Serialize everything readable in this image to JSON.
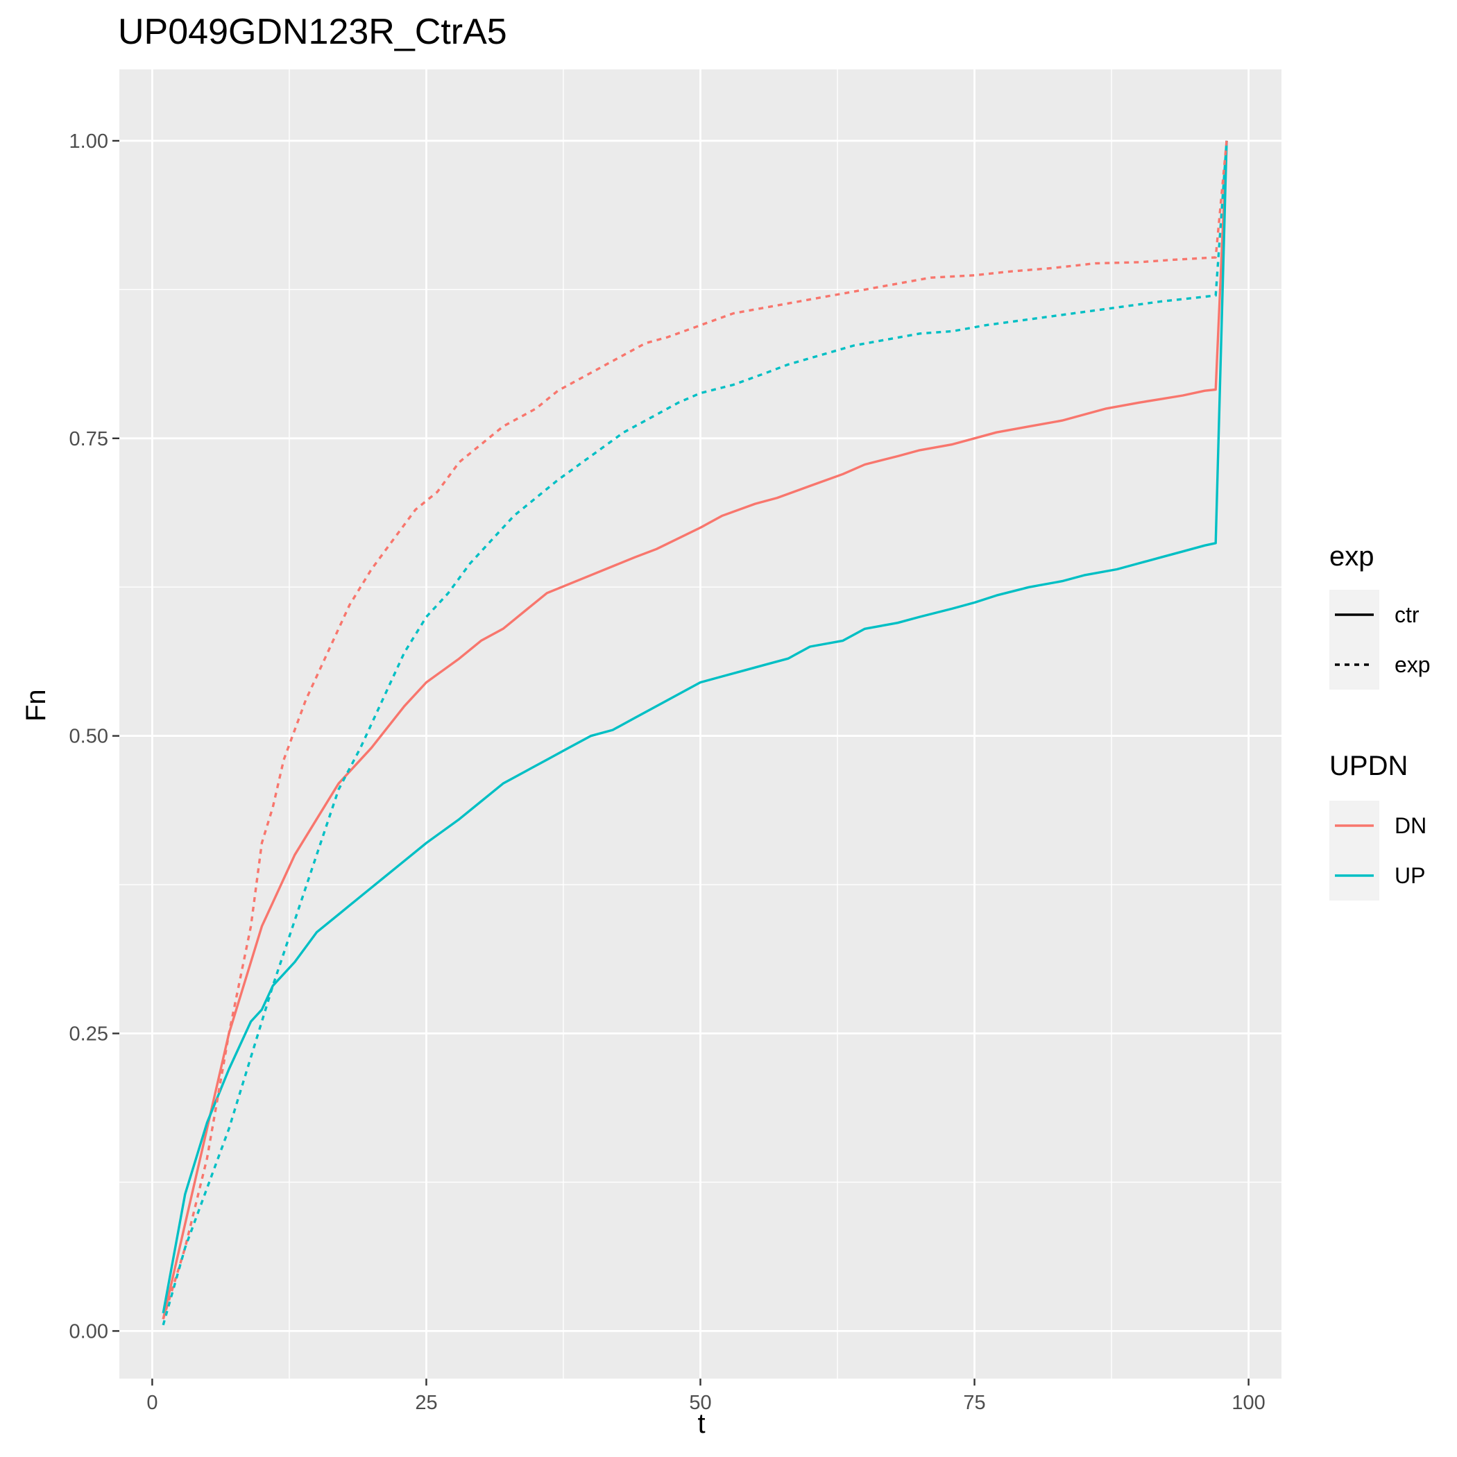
{
  "chart_data": {
    "type": "line",
    "title": "UP049GDN123R_CtrA5",
    "xlabel": "t",
    "ylabel": "Fn",
    "xlim": [
      -3,
      103
    ],
    "ylim": [
      -0.04,
      1.06
    ],
    "x_ticks": [
      "0",
      "25",
      "50",
      "75",
      "100"
    ],
    "y_ticks": [
      "0.00",
      "0.25",
      "0.50",
      "0.75",
      "1.00"
    ],
    "grid": true,
    "legend_placement": "right",
    "legends": [
      {
        "title": "exp",
        "entries": [
          {
            "label": "ctr",
            "linetype": "solid"
          },
          {
            "label": "exp",
            "linetype": "dashed"
          }
        ]
      },
      {
        "title": "UPDN",
        "entries": [
          {
            "label": "DN",
            "color": "#F8766D"
          },
          {
            "label": "UP",
            "color": "#00BFC4"
          }
        ]
      }
    ],
    "colors": {
      "DN": "#F8766D",
      "UP": "#00BFC4",
      "panel": "#EBEBEB",
      "grid": "#FFFFFF"
    },
    "series": [
      {
        "updn": "DN",
        "exp": "ctr",
        "points": [
          [
            1,
            0.01
          ],
          [
            3,
            0.09
          ],
          [
            5,
            0.17
          ],
          [
            7,
            0.25
          ],
          [
            9,
            0.31
          ],
          [
            10,
            0.34
          ],
          [
            11,
            0.36
          ],
          [
            12,
            0.38
          ],
          [
            13,
            0.4
          ],
          [
            15,
            0.43
          ],
          [
            17,
            0.46
          ],
          [
            20,
            0.49
          ],
          [
            23,
            0.525
          ],
          [
            25,
            0.545
          ],
          [
            28,
            0.565
          ],
          [
            30,
            0.58
          ],
          [
            32,
            0.59
          ],
          [
            34,
            0.605
          ],
          [
            36,
            0.62
          ],
          [
            40,
            0.635
          ],
          [
            44,
            0.65
          ],
          [
            46,
            0.657
          ],
          [
            50,
            0.675
          ],
          [
            52,
            0.685
          ],
          [
            55,
            0.695
          ],
          [
            57,
            0.7
          ],
          [
            60,
            0.71
          ],
          [
            63,
            0.72
          ],
          [
            65,
            0.728
          ],
          [
            68,
            0.735
          ],
          [
            70,
            0.74
          ],
          [
            73,
            0.745
          ],
          [
            75,
            0.75
          ],
          [
            77,
            0.755
          ],
          [
            80,
            0.76
          ],
          [
            83,
            0.765
          ],
          [
            85,
            0.77
          ],
          [
            87,
            0.775
          ],
          [
            90,
            0.78
          ],
          [
            92,
            0.783
          ],
          [
            94,
            0.786
          ],
          [
            96,
            0.79
          ],
          [
            97,
            0.791
          ],
          [
            98,
            1.0
          ]
        ]
      },
      {
        "updn": "UP",
        "exp": "ctr",
        "points": [
          [
            1,
            0.015
          ],
          [
            3,
            0.115
          ],
          [
            5,
            0.175
          ],
          [
            7,
            0.22
          ],
          [
            9,
            0.26
          ],
          [
            10,
            0.27
          ],
          [
            11,
            0.29
          ],
          [
            13,
            0.31
          ],
          [
            15,
            0.335
          ],
          [
            17,
            0.35
          ],
          [
            19,
            0.365
          ],
          [
            21,
            0.38
          ],
          [
            23,
            0.395
          ],
          [
            25,
            0.41
          ],
          [
            28,
            0.43
          ],
          [
            30,
            0.445
          ],
          [
            32,
            0.46
          ],
          [
            34,
            0.47
          ],
          [
            36,
            0.48
          ],
          [
            38,
            0.49
          ],
          [
            40,
            0.5
          ],
          [
            42,
            0.505
          ],
          [
            44,
            0.515
          ],
          [
            46,
            0.525
          ],
          [
            48,
            0.535
          ],
          [
            50,
            0.545
          ],
          [
            52,
            0.55
          ],
          [
            54,
            0.555
          ],
          [
            56,
            0.56
          ],
          [
            58,
            0.565
          ],
          [
            60,
            0.575
          ],
          [
            63,
            0.58
          ],
          [
            65,
            0.59
          ],
          [
            68,
            0.595
          ],
          [
            70,
            0.6
          ],
          [
            73,
            0.607
          ],
          [
            75,
            0.612
          ],
          [
            77,
            0.618
          ],
          [
            80,
            0.625
          ],
          [
            83,
            0.63
          ],
          [
            85,
            0.635
          ],
          [
            88,
            0.64
          ],
          [
            90,
            0.645
          ],
          [
            92,
            0.65
          ],
          [
            94,
            0.655
          ],
          [
            96,
            0.66
          ],
          [
            97,
            0.662
          ],
          [
            98,
            1.0
          ]
        ]
      },
      {
        "updn": "DN",
        "exp": "exp",
        "points": [
          [
            1,
            0.01
          ],
          [
            3,
            0.07
          ],
          [
            5,
            0.145
          ],
          [
            7,
            0.25
          ],
          [
            9,
            0.34
          ],
          [
            10,
            0.41
          ],
          [
            11,
            0.44
          ],
          [
            12,
            0.48
          ],
          [
            14,
            0.53
          ],
          [
            16,
            0.57
          ],
          [
            18,
            0.61
          ],
          [
            20,
            0.64
          ],
          [
            22,
            0.665
          ],
          [
            24,
            0.69
          ],
          [
            26,
            0.705
          ],
          [
            28,
            0.73
          ],
          [
            30,
            0.745
          ],
          [
            32,
            0.76
          ],
          [
            35,
            0.775
          ],
          [
            37,
            0.79
          ],
          [
            39,
            0.8
          ],
          [
            41,
            0.81
          ],
          [
            43,
            0.82
          ],
          [
            45,
            0.83
          ],
          [
            47,
            0.835
          ],
          [
            50,
            0.845
          ],
          [
            53,
            0.855
          ],
          [
            56,
            0.86
          ],
          [
            59,
            0.865
          ],
          [
            62,
            0.87
          ],
          [
            65,
            0.875
          ],
          [
            68,
            0.88
          ],
          [
            71,
            0.885
          ],
          [
            75,
            0.887
          ],
          [
            78,
            0.89
          ],
          [
            82,
            0.893
          ],
          [
            86,
            0.897
          ],
          [
            90,
            0.898
          ],
          [
            93,
            0.9
          ],
          [
            97,
            0.902
          ],
          [
            98,
            1.0
          ]
        ]
      },
      {
        "updn": "UP",
        "exp": "exp",
        "points": [
          [
            1,
            0.005
          ],
          [
            3,
            0.07
          ],
          [
            5,
            0.12
          ],
          [
            7,
            0.17
          ],
          [
            9,
            0.23
          ],
          [
            11,
            0.29
          ],
          [
            13,
            0.345
          ],
          [
            15,
            0.4
          ],
          [
            17,
            0.455
          ],
          [
            19,
            0.49
          ],
          [
            21,
            0.53
          ],
          [
            23,
            0.57
          ],
          [
            25,
            0.6
          ],
          [
            27,
            0.62
          ],
          [
            29,
            0.645
          ],
          [
            31,
            0.665
          ],
          [
            33,
            0.685
          ],
          [
            35,
            0.7
          ],
          [
            37,
            0.715
          ],
          [
            40,
            0.735
          ],
          [
            43,
            0.755
          ],
          [
            45,
            0.765
          ],
          [
            48,
            0.78
          ],
          [
            50,
            0.788
          ],
          [
            53,
            0.795
          ],
          [
            56,
            0.805
          ],
          [
            58,
            0.812
          ],
          [
            61,
            0.82
          ],
          [
            64,
            0.828
          ],
          [
            67,
            0.833
          ],
          [
            70,
            0.838
          ],
          [
            73,
            0.84
          ],
          [
            76,
            0.845
          ],
          [
            80,
            0.85
          ],
          [
            84,
            0.855
          ],
          [
            88,
            0.86
          ],
          [
            92,
            0.865
          ],
          [
            95,
            0.868
          ],
          [
            97,
            0.87
          ],
          [
            98,
            1.0
          ]
        ]
      }
    ]
  }
}
